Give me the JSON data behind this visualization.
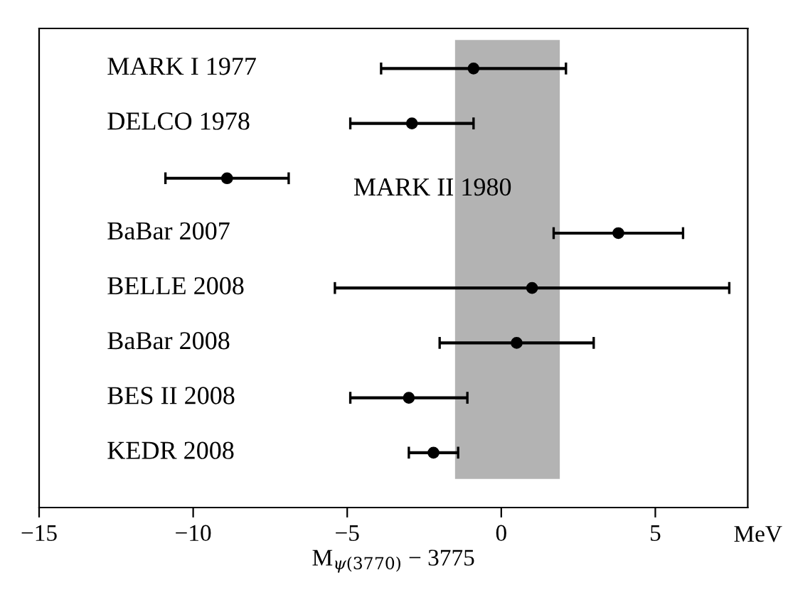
{
  "chart_data": {
    "type": "scatter",
    "orientation": "horizontal",
    "xlabel": "M$_{ψ(3770)}$ − 3775",
    "categories": [
      "MARK I 1977",
      "DELCO 1978",
      "MARK II 1980",
      "BaBar 2007",
      "BELLE 2008",
      "BaBar 2008",
      "BES II 2008",
      "KEDR 2008"
    ],
    "values": [
      -0.9,
      -2.9,
      -8.9,
      3.8,
      1.0,
      0.5,
      -3.0,
      -2.2
    ],
    "errors": [
      3.0,
      2.0,
      2.0,
      2.1,
      6.4,
      2.5,
      1.9,
      0.8
    ],
    "color": "#000000",
    "marker": "circle",
    "xlim": [
      -15,
      8
    ],
    "xticks": [
      -15,
      -10,
      -5,
      0,
      5
    ],
    "bands": [
      {
        "axis": "x",
        "from": -1.5,
        "to": 1.9,
        "color": "#b3b3b3"
      }
    ],
    "annotations": [
      "MeV"
    ],
    "grid": false,
    "legend": false
  }
}
